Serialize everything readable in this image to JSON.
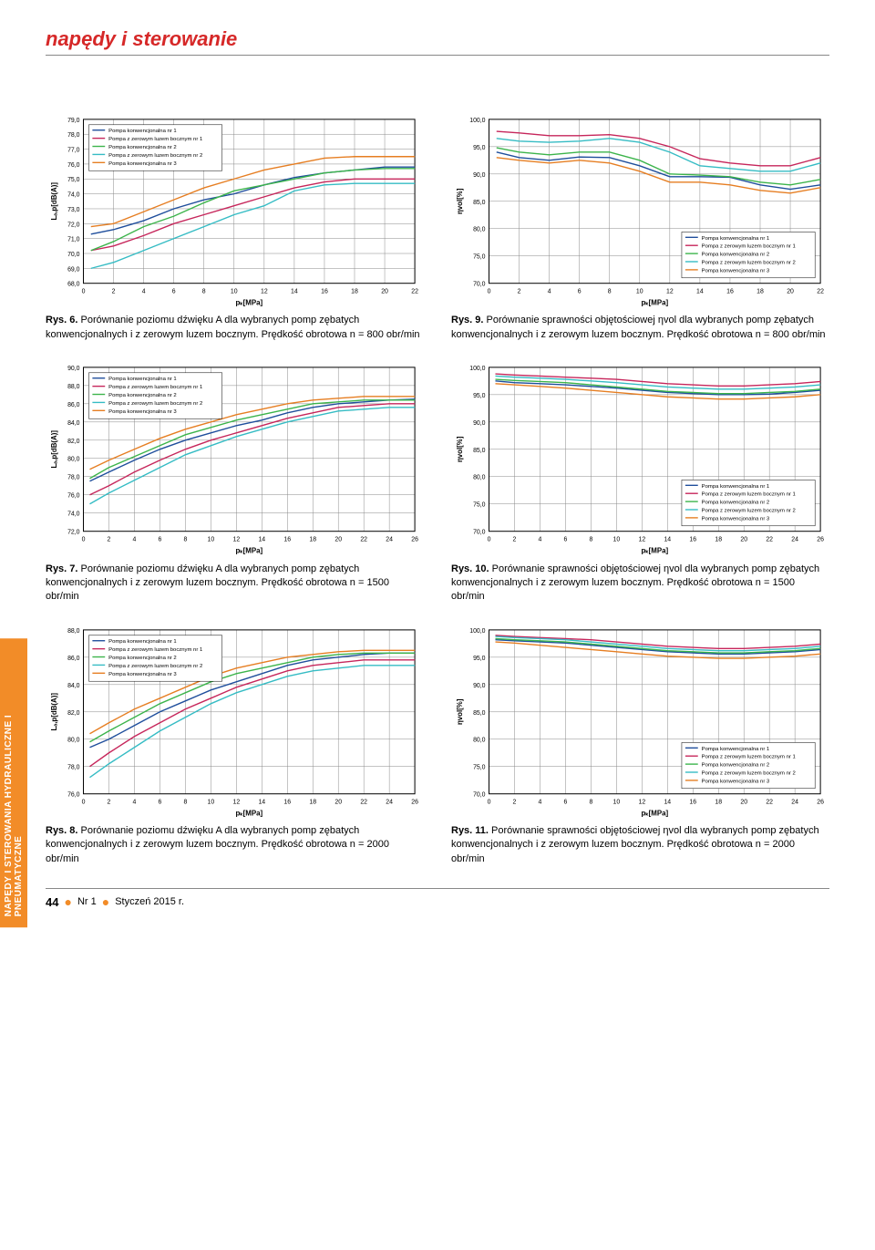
{
  "header": {
    "title": "napędy i sterowanie"
  },
  "side_tab": "NAPĘDY I STEROWANIA HYDRAULICZNE I PNEUMATYCZNE",
  "legend_labels": [
    "Pompa konwencjonalna nr 1",
    "Pompa z zerowym luzem bocznym nr 1",
    "Pompa konwencjonalna nr 2",
    "Pompa z zerowym luzem bocznym nr 2",
    "Pompa konwencjonalna nr 3"
  ],
  "series_colors": [
    "#1f4e9c",
    "#c6265b",
    "#3cb44b",
    "#35bcc4",
    "#e67e22"
  ],
  "grid_color": "#888888",
  "background_color": "#ffffff",
  "axis_font_size": 7,
  "legend_font_size": 6,
  "charts": {
    "fig6": {
      "type": "line",
      "xlabel": "pₖ[MPa]",
      "ylabel": "Lₐ,p[dB(A)]",
      "xlim": [
        0,
        22
      ],
      "xtick_step": 2,
      "ylim": [
        68,
        79
      ],
      "ytick_step": 1,
      "legend_pos": "top-left",
      "series": [
        {
          "x": [
            0.5,
            2,
            4,
            6,
            8,
            10,
            12,
            14,
            16,
            18,
            20,
            22
          ],
          "y": [
            71.3,
            71.6,
            72.2,
            73.0,
            73.6,
            74.0,
            74.6,
            75.1,
            75.4,
            75.6,
            75.8,
            75.8
          ]
        },
        {
          "x": [
            0.5,
            2,
            4,
            6,
            8,
            10,
            12,
            14,
            16,
            18,
            20,
            22
          ],
          "y": [
            70.2,
            70.5,
            71.2,
            72.0,
            72.6,
            73.2,
            73.8,
            74.4,
            74.8,
            75.0,
            75.0,
            75.0
          ]
        },
        {
          "x": [
            0.5,
            2,
            4,
            6,
            8,
            10,
            12,
            14,
            16,
            18,
            20,
            22
          ],
          "y": [
            70.2,
            70.8,
            71.8,
            72.5,
            73.4,
            74.2,
            74.6,
            75.0,
            75.4,
            75.6,
            75.7,
            75.7
          ]
        },
        {
          "x": [
            0.5,
            2,
            4,
            6,
            8,
            10,
            12,
            14,
            16,
            18,
            20,
            22
          ],
          "y": [
            69.0,
            69.4,
            70.2,
            71.0,
            71.8,
            72.6,
            73.2,
            74.2,
            74.6,
            74.7,
            74.7,
            74.7
          ]
        },
        {
          "x": [
            0.5,
            2,
            4,
            6,
            8,
            10,
            12,
            14,
            16,
            18,
            20,
            22
          ],
          "y": [
            71.8,
            72.0,
            72.8,
            73.6,
            74.4,
            75.0,
            75.6,
            76.0,
            76.4,
            76.5,
            76.5,
            76.5
          ]
        }
      ]
    },
    "fig9": {
      "type": "line",
      "xlabel": "pₖ[MPa]",
      "ylabel": "ηvol[%]",
      "xlim": [
        0,
        22
      ],
      "xtick_step": 2,
      "ylim": [
        70,
        100
      ],
      "ytick_step": 5,
      "legend_pos": "bottom-right",
      "series": [
        {
          "x": [
            0.5,
            2,
            4,
            6,
            8,
            10,
            12,
            14,
            16,
            18,
            20,
            22
          ],
          "y": [
            94.0,
            93.0,
            92.5,
            93.1,
            93.0,
            91.5,
            89.5,
            89.5,
            89.4,
            88.0,
            87.2,
            88.0
          ]
        },
        {
          "x": [
            0.5,
            2,
            4,
            6,
            8,
            10,
            12,
            14,
            16,
            18,
            20,
            22
          ],
          "y": [
            97.8,
            97.5,
            97.0,
            97.0,
            97.2,
            96.5,
            95.0,
            92.8,
            92.0,
            91.5,
            91.5,
            93.0
          ]
        },
        {
          "x": [
            0.5,
            2,
            4,
            6,
            8,
            10,
            12,
            14,
            16,
            18,
            20,
            22
          ],
          "y": [
            94.8,
            94.0,
            93.5,
            94.0,
            94.0,
            92.5,
            90.0,
            89.8,
            89.5,
            88.5,
            88.0,
            89.0
          ]
        },
        {
          "x": [
            0.5,
            2,
            4,
            6,
            8,
            10,
            12,
            14,
            16,
            18,
            20,
            22
          ],
          "y": [
            96.5,
            96.0,
            95.8,
            96.0,
            96.5,
            95.8,
            94.0,
            91.5,
            91.0,
            90.5,
            90.5,
            92.0
          ]
        },
        {
          "x": [
            0.5,
            2,
            4,
            6,
            8,
            10,
            12,
            14,
            16,
            18,
            20,
            22
          ],
          "y": [
            93.0,
            92.5,
            92.0,
            92.5,
            92.0,
            90.5,
            88.5,
            88.5,
            88.0,
            87.0,
            86.5,
            87.5
          ]
        }
      ]
    },
    "fig7": {
      "type": "line",
      "xlabel": "pₖ[MPa]",
      "ylabel": "Lₐ,p[dB(A)]",
      "xlim": [
        0,
        26
      ],
      "xtick_step": 2,
      "ylim": [
        72,
        90
      ],
      "ytick_step": 2,
      "legend_pos": "top-left",
      "series": [
        {
          "x": [
            0.5,
            2,
            4,
            6,
            8,
            10,
            12,
            14,
            16,
            18,
            20,
            22,
            24,
            26
          ],
          "y": [
            77.5,
            78.5,
            79.8,
            81.0,
            82.0,
            82.8,
            83.6,
            84.2,
            85.0,
            85.6,
            86.0,
            86.2,
            86.4,
            86.5
          ]
        },
        {
          "x": [
            0.5,
            2,
            4,
            6,
            8,
            10,
            12,
            14,
            16,
            18,
            20,
            22,
            24,
            26
          ],
          "y": [
            76.0,
            77.0,
            78.5,
            79.8,
            81.0,
            82.0,
            82.8,
            83.6,
            84.4,
            85.0,
            85.6,
            85.8,
            86.0,
            86.0
          ]
        },
        {
          "x": [
            0.5,
            2,
            4,
            6,
            8,
            10,
            12,
            14,
            16,
            18,
            20,
            22,
            24,
            26
          ],
          "y": [
            77.8,
            79.0,
            80.2,
            81.4,
            82.6,
            83.4,
            84.2,
            84.8,
            85.4,
            86.0,
            86.2,
            86.4,
            86.4,
            86.4
          ]
        },
        {
          "x": [
            0.5,
            2,
            4,
            6,
            8,
            10,
            12,
            14,
            16,
            18,
            20,
            22,
            24,
            26
          ],
          "y": [
            75.0,
            76.2,
            77.6,
            79.0,
            80.4,
            81.4,
            82.4,
            83.2,
            84.0,
            84.6,
            85.2,
            85.4,
            85.6,
            85.6
          ]
        },
        {
          "x": [
            0.5,
            2,
            4,
            6,
            8,
            10,
            12,
            14,
            16,
            18,
            20,
            22,
            24,
            26
          ],
          "y": [
            78.8,
            79.8,
            81.0,
            82.2,
            83.2,
            84.0,
            84.8,
            85.4,
            86.0,
            86.4,
            86.6,
            86.8,
            86.8,
            86.8
          ]
        }
      ]
    },
    "fig10": {
      "type": "line",
      "xlabel": "pₖ[MPa]",
      "ylabel": "ηvol[%]",
      "xlim": [
        0,
        26
      ],
      "xtick_step": 2,
      "ylim": [
        70,
        100
      ],
      "ytick_step": 5,
      "legend_pos": "bottom-right",
      "series": [
        {
          "x": [
            0.5,
            2,
            4,
            6,
            8,
            10,
            12,
            14,
            16,
            18,
            20,
            22,
            24,
            26
          ],
          "y": [
            97.5,
            97.2,
            97.0,
            96.8,
            96.5,
            96.2,
            95.8,
            95.4,
            95.2,
            95.0,
            95.0,
            95.1,
            95.4,
            95.8
          ]
        },
        {
          "x": [
            0.5,
            2,
            4,
            6,
            8,
            10,
            12,
            14,
            16,
            18,
            20,
            22,
            24,
            26
          ],
          "y": [
            98.8,
            98.6,
            98.4,
            98.2,
            98.0,
            97.8,
            97.4,
            97.0,
            96.8,
            96.6,
            96.6,
            96.8,
            97.0,
            97.4
          ]
        },
        {
          "x": [
            0.5,
            2,
            4,
            6,
            8,
            10,
            12,
            14,
            16,
            18,
            20,
            22,
            24,
            26
          ],
          "y": [
            97.8,
            97.6,
            97.4,
            97.2,
            96.8,
            96.4,
            96.0,
            95.6,
            95.4,
            95.2,
            95.2,
            95.4,
            95.6,
            96.0
          ]
        },
        {
          "x": [
            0.5,
            2,
            4,
            6,
            8,
            10,
            12,
            14,
            16,
            18,
            20,
            22,
            24,
            26
          ],
          "y": [
            98.4,
            98.2,
            98.0,
            97.8,
            97.5,
            97.2,
            96.8,
            96.4,
            96.2,
            96.0,
            96.0,
            96.2,
            96.4,
            96.8
          ]
        },
        {
          "x": [
            0.5,
            2,
            4,
            6,
            8,
            10,
            12,
            14,
            16,
            18,
            20,
            22,
            24,
            26
          ],
          "y": [
            97.0,
            96.8,
            96.5,
            96.2,
            95.8,
            95.4,
            95.0,
            94.6,
            94.4,
            94.2,
            94.2,
            94.4,
            94.6,
            95.0
          ]
        }
      ]
    },
    "fig8": {
      "type": "line",
      "xlabel": "pₖ[MPa]",
      "ylabel": "Lₐ,p[dB(A)]",
      "xlim": [
        0,
        26
      ],
      "xtick_step": 2,
      "ylim": [
        76,
        88
      ],
      "ytick_step": 2,
      "legend_pos": "top-left",
      "series": [
        {
          "x": [
            0.5,
            2,
            4,
            6,
            8,
            10,
            12,
            14,
            16,
            18,
            20,
            22,
            24,
            26
          ],
          "y": [
            79.4,
            80.0,
            81.0,
            82.0,
            82.8,
            83.6,
            84.2,
            84.8,
            85.4,
            85.8,
            86.0,
            86.2,
            86.3,
            86.3
          ]
        },
        {
          "x": [
            0.5,
            2,
            4,
            6,
            8,
            10,
            12,
            14,
            16,
            18,
            20,
            22,
            24,
            26
          ],
          "y": [
            78.0,
            79.0,
            80.2,
            81.2,
            82.2,
            83.0,
            83.8,
            84.4,
            85.0,
            85.4,
            85.6,
            85.8,
            85.8,
            85.8
          ]
        },
        {
          "x": [
            0.5,
            2,
            4,
            6,
            8,
            10,
            12,
            14,
            16,
            18,
            20,
            22,
            24,
            26
          ],
          "y": [
            79.8,
            80.6,
            81.6,
            82.6,
            83.4,
            84.2,
            84.8,
            85.2,
            85.6,
            86.0,
            86.2,
            86.3,
            86.3,
            86.3
          ]
        },
        {
          "x": [
            0.5,
            2,
            4,
            6,
            8,
            10,
            12,
            14,
            16,
            18,
            20,
            22,
            24,
            26
          ],
          "y": [
            77.2,
            78.2,
            79.4,
            80.6,
            81.6,
            82.6,
            83.4,
            84.0,
            84.6,
            85.0,
            85.2,
            85.4,
            85.4,
            85.4
          ]
        },
        {
          "x": [
            0.5,
            2,
            4,
            6,
            8,
            10,
            12,
            14,
            16,
            18,
            20,
            22,
            24,
            26
          ],
          "y": [
            80.4,
            81.2,
            82.2,
            83.0,
            83.8,
            84.6,
            85.2,
            85.6,
            86.0,
            86.2,
            86.4,
            86.5,
            86.5,
            86.5
          ]
        }
      ]
    },
    "fig11": {
      "type": "line",
      "xlabel": "pₖ[MPa]",
      "ylabel": "ηvol[%]",
      "xlim": [
        0,
        26
      ],
      "xtick_step": 2,
      "ylim": [
        70,
        100
      ],
      "ytick_step": 5,
      "legend_pos": "bottom-right",
      "series": [
        {
          "x": [
            0.5,
            2,
            4,
            6,
            8,
            10,
            12,
            14,
            16,
            18,
            20,
            22,
            24,
            26
          ],
          "y": [
            98.2,
            98.0,
            97.8,
            97.6,
            97.2,
            96.8,
            96.4,
            96.0,
            95.8,
            95.6,
            95.6,
            95.8,
            96.0,
            96.4
          ]
        },
        {
          "x": [
            0.5,
            2,
            4,
            6,
            8,
            10,
            12,
            14,
            16,
            18,
            20,
            22,
            24,
            26
          ],
          "y": [
            99.0,
            98.8,
            98.6,
            98.4,
            98.2,
            97.8,
            97.4,
            97.0,
            96.8,
            96.6,
            96.6,
            96.8,
            97.0,
            97.4
          ]
        },
        {
          "x": [
            0.5,
            2,
            4,
            6,
            8,
            10,
            12,
            14,
            16,
            18,
            20,
            22,
            24,
            26
          ],
          "y": [
            98.4,
            98.2,
            98.0,
            97.8,
            97.4,
            97.0,
            96.6,
            96.2,
            96.0,
            95.8,
            95.8,
            96.0,
            96.2,
            96.6
          ]
        },
        {
          "x": [
            0.5,
            2,
            4,
            6,
            8,
            10,
            12,
            14,
            16,
            18,
            20,
            22,
            24,
            26
          ],
          "y": [
            98.8,
            98.6,
            98.4,
            98.2,
            97.8,
            97.4,
            97.0,
            96.6,
            96.4,
            96.2,
            96.2,
            96.4,
            96.6,
            97.0
          ]
        },
        {
          "x": [
            0.5,
            2,
            4,
            6,
            8,
            10,
            12,
            14,
            16,
            18,
            20,
            22,
            24,
            26
          ],
          "y": [
            97.8,
            97.6,
            97.2,
            96.8,
            96.4,
            96.0,
            95.6,
            95.2,
            95.0,
            94.8,
            94.8,
            95.0,
            95.2,
            95.6
          ]
        }
      ]
    }
  },
  "captions": {
    "fig6": {
      "b": "Rys. 6.",
      "t": " Porównanie poziomu dźwięku A dla wybranych pomp zębatych konwencjonalnych i z zerowym luzem bocznym. Prędkość obrotowa n = 800 obr/min"
    },
    "fig9": {
      "b": "Rys. 9.",
      "t": " Porównanie sprawności objętościowej ηvol dla wybranych pomp zębatych konwencjonalnych i z zerowym luzem bocznym. Prędkość obrotowa n = 800 obr/min"
    },
    "fig7": {
      "b": "Rys. 7.",
      "t": " Porównanie poziomu dźwięku A dla wybranych pomp zębatych konwencjonalnych i z zerowym luzem bocznym. Prędkość obrotowa n = 1500 obr/min"
    },
    "fig10": {
      "b": "Rys. 10.",
      "t": " Porównanie sprawności objętościowej ηvol dla wybranych pomp zębatych konwencjonalnych i z zerowym luzem bocznym. Prędkość obrotowa n = 1500 obr/min"
    },
    "fig8": {
      "b": "Rys. 8.",
      "t": " Porównanie poziomu dźwięku A dla wybranych pomp zębatych konwencjonalnych i z zerowym luzem bocznym. Prędkość obrotowa n = 2000 obr/min"
    },
    "fig11": {
      "b": "Rys. 11.",
      "t": " Porównanie sprawności objętościowej ηvol dla wybranych pomp zębatych konwencjonalnych i z zerowym luzem bocznym. Prędkość obrotowa n = 2000 obr/min"
    }
  },
  "footer": {
    "page": "44",
    "issue": "Nr 1",
    "date": "Styczeń 2015 r."
  }
}
